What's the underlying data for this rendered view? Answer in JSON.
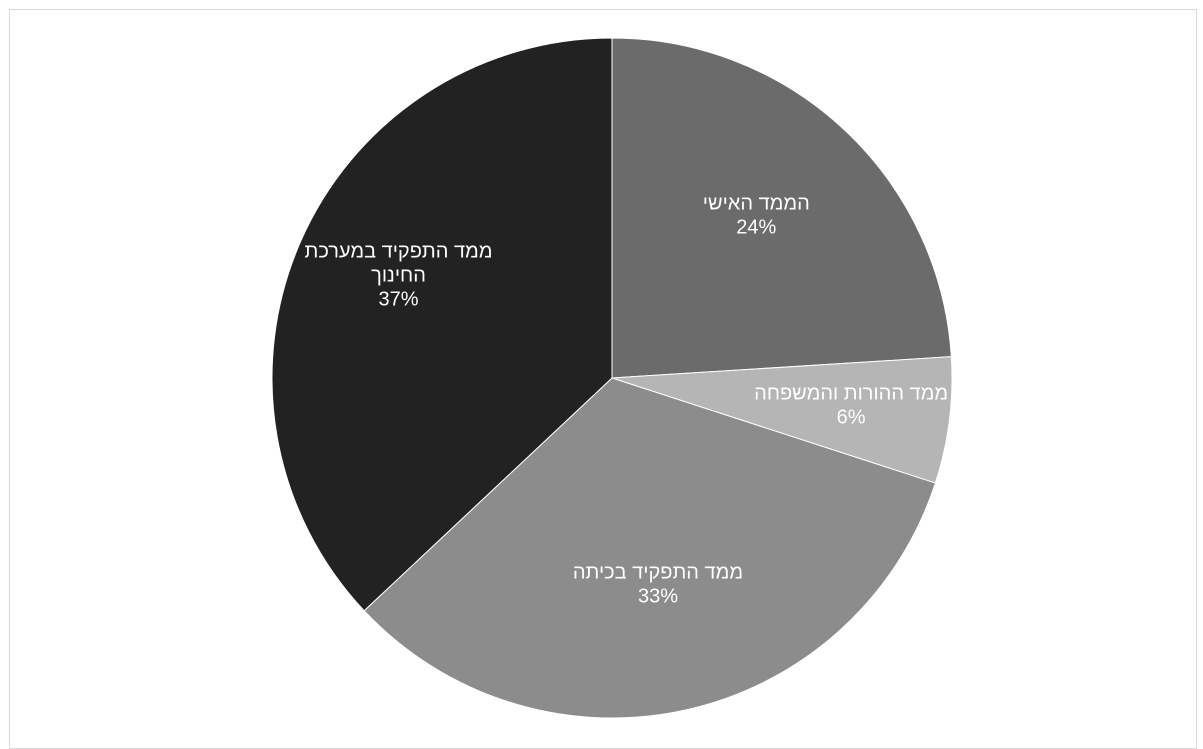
{
  "chart_data": {
    "type": "pie",
    "title": "",
    "slices": [
      {
        "label_lines": [
          "הממד האישי"
        ],
        "value": 24,
        "value_label": "24%",
        "color": "#6b6b6b"
      },
      {
        "label_lines": [
          "ממד ההורות והמשפחה"
        ],
        "value": 6,
        "value_label": "6%",
        "color": "#b5b5b5"
      },
      {
        "label_lines": [
          "ממד התפקיד בכיתה"
        ],
        "value": 33,
        "value_label": "33%",
        "color": "#8c8c8c"
      },
      {
        "label_lines": [
          "ממד התפקיד במערכת",
          "החינוך"
        ],
        "value": 37,
        "value_label": "37%",
        "color": "#222222"
      }
    ],
    "start_angle_deg": 0,
    "direction": "clockwise",
    "legend": "none",
    "label_color": "#ffffff"
  }
}
